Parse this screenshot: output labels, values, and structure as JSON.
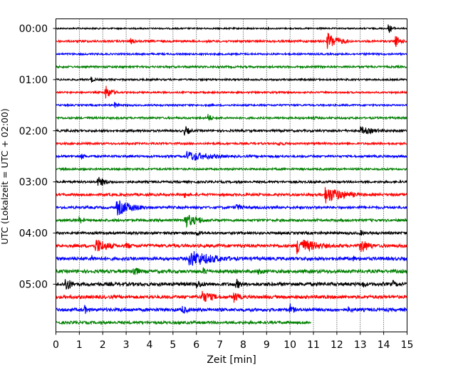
{
  "chart_data": {
    "type": "line",
    "subtype": "helicorder",
    "xlabel": "Zeit  [min]",
    "ylabel": "UTC (Lokalzeit = UTC + 02:00)",
    "xlim": [
      0,
      15
    ],
    "xticks": [
      "0",
      "1",
      "2",
      "3",
      "4",
      "5",
      "6",
      "7",
      "8",
      "9",
      "10",
      "11",
      "12",
      "13",
      "14",
      "15"
    ],
    "ytick_labels": [
      "00:00",
      "01:00",
      "02:00",
      "03:00",
      "04:00",
      "05:00"
    ],
    "ytick_trace_index": [
      0,
      4,
      8,
      12,
      16,
      20
    ],
    "grid": "vertical dotted at each minute",
    "minutes_per_trace": 15,
    "trace_colors": [
      "#000000",
      "#ff0000",
      "#0000ff",
      "#008000"
    ],
    "traces": [
      {
        "start": "00:00",
        "end_min": 15,
        "noise": 0.6,
        "events": [
          {
            "t": 14.2,
            "amp": 7,
            "dur": 0.2
          }
        ]
      },
      {
        "start": "00:15",
        "end_min": 15,
        "noise": 0.8,
        "events": [
          {
            "t": 3.2,
            "amp": 5,
            "dur": 0.25
          },
          {
            "t": 11.6,
            "amp": 13,
            "dur": 0.5
          },
          {
            "t": 14.5,
            "amp": 9,
            "dur": 0.25
          }
        ]
      },
      {
        "start": "00:30",
        "end_min": 15,
        "noise": 0.7,
        "events": []
      },
      {
        "start": "00:45",
        "end_min": 15,
        "noise": 0.8,
        "events": []
      },
      {
        "start": "01:00",
        "end_min": 15,
        "noise": 0.7,
        "events": [
          {
            "t": 1.5,
            "amp": 5,
            "dur": 0.2
          }
        ]
      },
      {
        "start": "01:15",
        "end_min": 15,
        "noise": 0.7,
        "events": [
          {
            "t": 2.1,
            "amp": 11,
            "dur": 0.3
          }
        ]
      },
      {
        "start": "01:30",
        "end_min": 15,
        "noise": 0.7,
        "events": [
          {
            "t": 2.5,
            "amp": 5,
            "dur": 0.2
          }
        ]
      },
      {
        "start": "01:45",
        "end_min": 15,
        "noise": 0.8,
        "events": [
          {
            "t": 6.5,
            "amp": 8,
            "dur": 0.15
          },
          {
            "t": 11.0,
            "amp": 3,
            "dur": 0.3
          }
        ]
      },
      {
        "start": "02:00",
        "end_min": 15,
        "noise": 0.9,
        "events": [
          {
            "t": 5.5,
            "amp": 8,
            "dur": 0.25
          },
          {
            "t": 13.0,
            "amp": 6,
            "dur": 0.9
          }
        ]
      },
      {
        "start": "02:15",
        "end_min": 15,
        "noise": 0.8,
        "events": [
          {
            "t": 9.5,
            "amp": 4,
            "dur": 0.4
          }
        ]
      },
      {
        "start": "02:30",
        "end_min": 15,
        "noise": 0.9,
        "events": [
          {
            "t": 1.1,
            "amp": 5,
            "dur": 0.2
          },
          {
            "t": 5.6,
            "amp": 8,
            "dur": 1.2
          }
        ]
      },
      {
        "start": "02:45",
        "end_min": 15,
        "noise": 0.8,
        "events": []
      },
      {
        "start": "03:00",
        "end_min": 15,
        "noise": 0.9,
        "events": [
          {
            "t": 1.8,
            "amp": 8,
            "dur": 0.4
          }
        ]
      },
      {
        "start": "03:15",
        "end_min": 15,
        "noise": 1.0,
        "events": [
          {
            "t": 5.5,
            "amp": 6,
            "dur": 0.2
          },
          {
            "t": 11.5,
            "amp": 13,
            "dur": 0.9
          }
        ]
      },
      {
        "start": "03:30",
        "end_min": 15,
        "noise": 1.0,
        "events": [
          {
            "t": 2.6,
            "amp": 12,
            "dur": 0.8
          },
          {
            "t": 7.7,
            "amp": 6,
            "dur": 0.3
          }
        ]
      },
      {
        "start": "03:45",
        "end_min": 15,
        "noise": 1.0,
        "events": [
          {
            "t": 1.0,
            "amp": 6,
            "dur": 0.2
          },
          {
            "t": 5.5,
            "amp": 11,
            "dur": 0.6
          },
          {
            "t": 6.1,
            "amp": 6,
            "dur": 0.3
          }
        ]
      },
      {
        "start": "04:00",
        "end_min": 15,
        "noise": 1.0,
        "events": [
          {
            "t": 6.0,
            "amp": 5,
            "dur": 0.3
          },
          {
            "t": 13.0,
            "amp": 5,
            "dur": 0.2
          }
        ]
      },
      {
        "start": "04:15",
        "end_min": 15,
        "noise": 1.3,
        "events": [
          {
            "t": 1.7,
            "amp": 12,
            "dur": 0.6
          },
          {
            "t": 3.0,
            "amp": 6,
            "dur": 0.3
          },
          {
            "t": 10.3,
            "amp": 13,
            "dur": 0.9
          },
          {
            "t": 13.0,
            "amp": 12,
            "dur": 0.4
          }
        ]
      },
      {
        "start": "04:30",
        "end_min": 15,
        "noise": 1.3,
        "events": [
          {
            "t": 5.7,
            "amp": 13,
            "dur": 1.2
          },
          {
            "t": 1.5,
            "amp": 6,
            "dur": 0.2
          },
          {
            "t": 12.7,
            "amp": 4,
            "dur": 0.3
          }
        ]
      },
      {
        "start": "04:45",
        "end_min": 15,
        "noise": 1.3,
        "events": [
          {
            "t": 3.3,
            "amp": 9,
            "dur": 0.3
          },
          {
            "t": 6.3,
            "amp": 6,
            "dur": 0.3
          },
          {
            "t": 8.6,
            "amp": 5,
            "dur": 0.5
          }
        ]
      },
      {
        "start": "05:00",
        "end_min": 15,
        "noise": 1.4,
        "events": [
          {
            "t": 0.4,
            "amp": 12,
            "dur": 0.3
          },
          {
            "t": 6.0,
            "amp": 7,
            "dur": 0.4
          },
          {
            "t": 7.7,
            "amp": 8,
            "dur": 0.3
          },
          {
            "t": 13.1,
            "amp": 6,
            "dur": 0.2
          },
          {
            "t": 14.4,
            "amp": 6,
            "dur": 0.2
          }
        ]
      },
      {
        "start": "05:15",
        "end_min": 15,
        "noise": 1.3,
        "events": [
          {
            "t": 6.2,
            "amp": 10,
            "dur": 0.6
          },
          {
            "t": 7.6,
            "amp": 9,
            "dur": 0.3
          }
        ]
      },
      {
        "start": "05:30",
        "end_min": 15,
        "noise": 1.3,
        "events": [
          {
            "t": 1.2,
            "amp": 8,
            "dur": 0.2
          },
          {
            "t": 5.4,
            "amp": 7,
            "dur": 0.3
          },
          {
            "t": 10.0,
            "amp": 9,
            "dur": 0.2
          },
          {
            "t": 12.5,
            "amp": 6,
            "dur": 0.2
          }
        ]
      },
      {
        "start": "05:45",
        "end_min": 10.9,
        "noise": 1.1,
        "events": []
      }
    ]
  }
}
